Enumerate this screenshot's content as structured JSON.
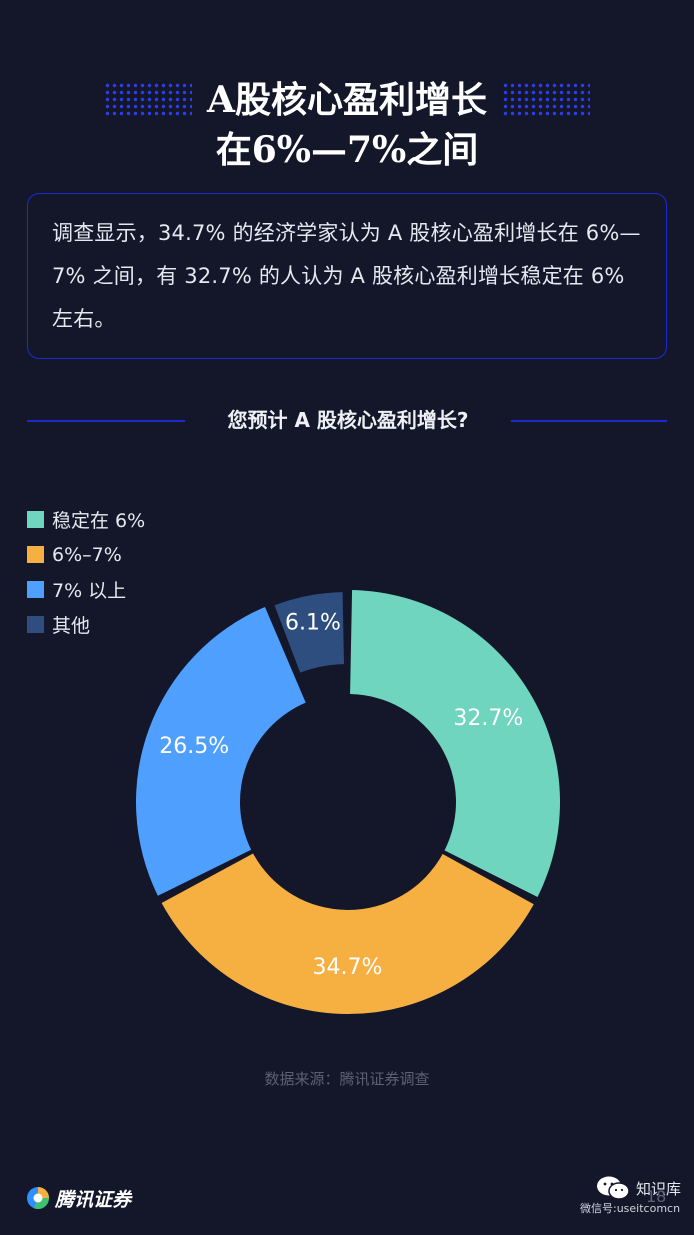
{
  "title": {
    "line1": "A股核心盈利增长",
    "line2": "在6%—7%之间"
  },
  "intro": {
    "text": "调查显示，34.7% 的经济学家认为 A 股核心盈利增长在 6%—7% 之间，有 32.7% 的人认为 A 股核心盈利增长稳定在 6% 左右。"
  },
  "question": "您预计 A 股核心盈利增长?",
  "chart_data": {
    "type": "pie",
    "donut": true,
    "categories": [
      "稳定在 6%",
      "6%–7%",
      "7% 以上",
      "其他"
    ],
    "values": [
      32.7,
      34.7,
      26.5,
      6.1
    ],
    "labels": [
      "32.7%",
      "34.7%",
      "26.5%",
      "6.1%"
    ],
    "colors": [
      "#6fd5bf",
      "#f6b042",
      "#4f9ffe",
      "#2f4e80"
    ],
    "legend": "top-left",
    "exploded_segments": [
      "其他"
    ]
  },
  "source": "数据来源：腾讯证券调查",
  "brand": "腾讯证券",
  "watermark": {
    "name": "知识库",
    "id": "微信号:useitcomcn"
  },
  "page_number": "18"
}
